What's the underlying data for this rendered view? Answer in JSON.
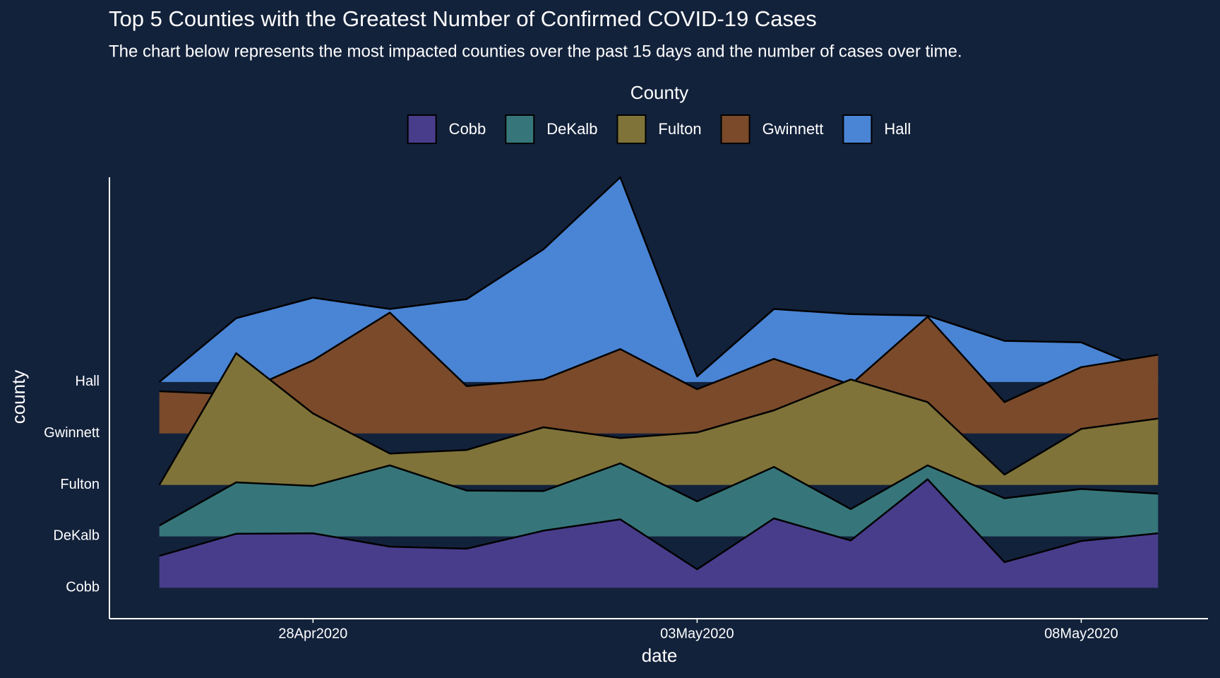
{
  "chart_data": {
    "type": "ridgeline",
    "title": "Top 5 Counties with the Greatest Number of Confirmed COVID-19 Cases",
    "subtitle": "The chart below represents the most impacted counties over the past 15 days and the number of cases over time.",
    "legend_title": "County",
    "x_label": "date",
    "y_label": "county",
    "x": [
      "2020-04-26",
      "2020-04-27",
      "2020-04-28",
      "2020-04-29",
      "2020-04-30",
      "2020-05-01",
      "2020-05-02",
      "2020-05-03",
      "2020-05-04",
      "2020-05-05",
      "2020-05-06",
      "2020-05-07",
      "2020-05-08",
      "2020-05-09"
    ],
    "xticks": [
      {
        "value": "2020-04-28",
        "label": "28Apr2020"
      },
      {
        "value": "2020-05-03",
        "label": "03May2020"
      },
      {
        "value": "2020-05-08",
        "label": "08May2020"
      }
    ],
    "categories": [
      "Cobb",
      "DeKalb",
      "Fulton",
      "Gwinnett",
      "Hall"
    ],
    "series": [
      {
        "name": "Cobb",
        "color": "#483d8b",
        "values": [
          0.62,
          1.05,
          1.06,
          0.8,
          0.76,
          1.11,
          1.33,
          0.36,
          1.35,
          0.92,
          2.11,
          0.5,
          0.91,
          1.06
        ]
      },
      {
        "name": "DeKalb",
        "color": "#36767a",
        "values": [
          0.21,
          1.05,
          0.98,
          1.38,
          0.89,
          0.88,
          1.42,
          0.68,
          1.35,
          0.53,
          1.38,
          0.74,
          0.92,
          0.83
        ]
      },
      {
        "name": "Fulton",
        "color": "#7f7339",
        "values": [
          0,
          2.56,
          1.39,
          0.61,
          0.68,
          1.12,
          0.91,
          1.02,
          1.45,
          2.05,
          1.61,
          0.2,
          1.09,
          1.29
        ]
      },
      {
        "name": "Gwinnett",
        "color": "#7a4a2a",
        "values": [
          0.82,
          0.76,
          1.42,
          2.35,
          0.92,
          1.05,
          1.64,
          0.86,
          1.45,
          0.95,
          2.27,
          0.61,
          1.29,
          1.53
        ]
      },
      {
        "name": "Hall",
        "color": "#4a84d4",
        "values": [
          0,
          1.24,
          1.64,
          1.42,
          1.61,
          2.58,
          3.98,
          0.11,
          1.42,
          1.32,
          1.29,
          0.8,
          0.77,
          0.15
        ]
      }
    ]
  }
}
